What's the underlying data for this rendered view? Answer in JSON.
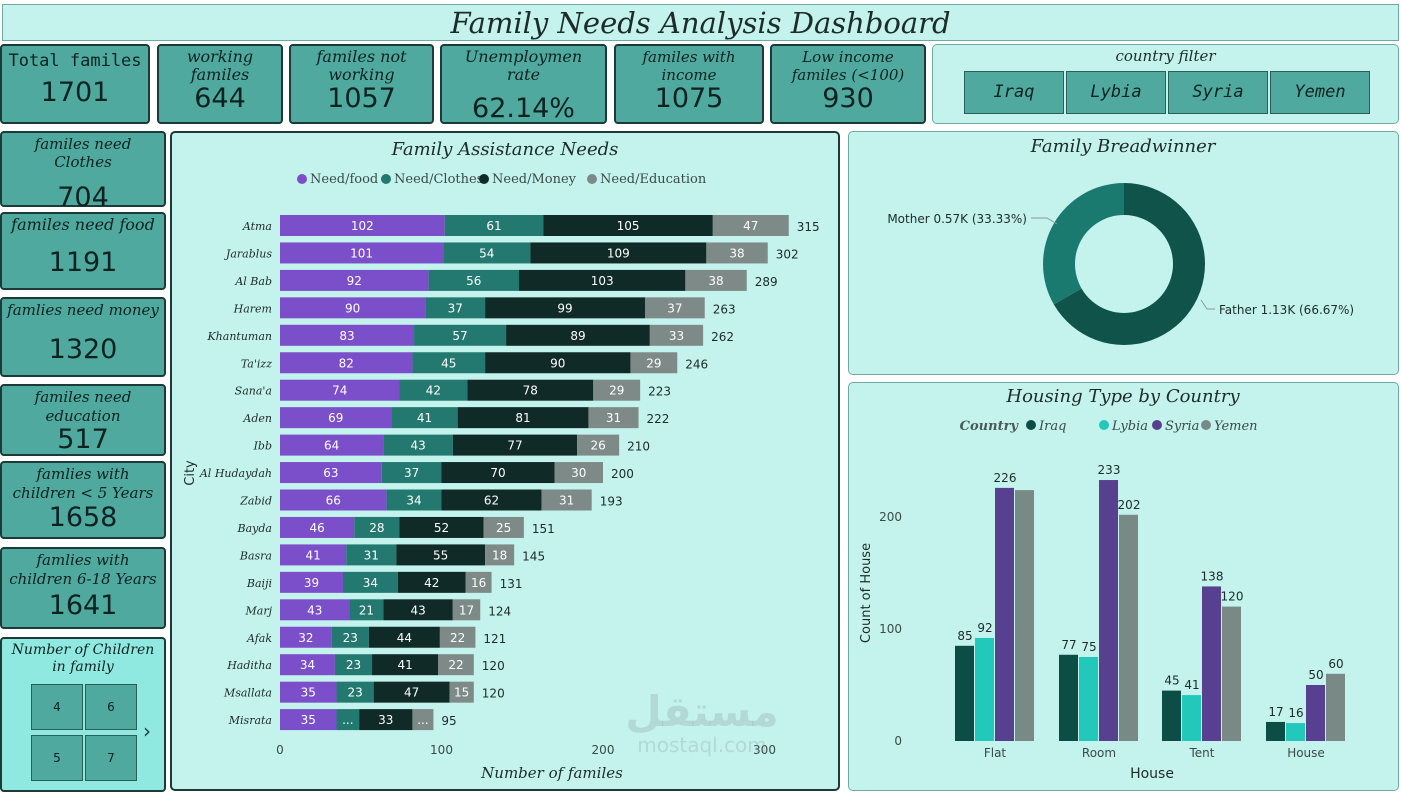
{
  "title": "Family Needs Analysis Dashboard",
  "kpis": [
    {
      "label": "Total familes",
      "value": "1701"
    },
    {
      "label": "working familes",
      "value": "644"
    },
    {
      "label": "familes not working",
      "value": "1057"
    },
    {
      "label": "Unemploymen rate",
      "value": "62.14%"
    },
    {
      "label": "familes with income",
      "value": "1075"
    },
    {
      "label": "Low income familes (<100)",
      "value": "930"
    }
  ],
  "country_filter": {
    "title": "country filter",
    "options": [
      "Iraq",
      "Lybia",
      "Syria",
      "Yemen"
    ]
  },
  "side_kpis": [
    {
      "label": "familes need Clothes",
      "value": "704"
    },
    {
      "label": "familes need food",
      "value": "1191"
    },
    {
      "label": "famlies need money",
      "value": "1320"
    },
    {
      "label": "familes need education",
      "value": "517"
    },
    {
      "label": "famlies with children < 5 Years",
      "value": "1658"
    },
    {
      "label": "famlies with children 6-18 Years",
      "value": "1641"
    }
  ],
  "children_slicer": {
    "title": "Number of Children in family",
    "options": [
      "4",
      "6",
      "5",
      "7"
    ]
  },
  "watermark": {
    "text_ar": "مستقل",
    "text_en": "mostaql.com"
  },
  "colors": {
    "food": "#7b4fc9",
    "clothes": "#23796f",
    "money": "#0f2a27",
    "education": "#7e8a88",
    "iraq": "#0c4e46",
    "lybia": "#22c9bb",
    "syria": "#56408f",
    "yemen": "#798985",
    "mother": "#1b7a70",
    "father": "#10534b"
  },
  "chart_data": [
    {
      "type": "bar",
      "orientation": "horizontal",
      "stacked": true,
      "title": "Family Assistance Needs",
      "xlabel": "Number of familes",
      "ylabel": "City",
      "xlim": [
        0,
        300
      ],
      "xticks": [
        "0",
        "100",
        "200",
        "300"
      ],
      "legend_position": "top",
      "categories": [
        "Atma",
        "Jarablus",
        "Al Bab",
        "Harem",
        "Khantuman",
        "Ta'izz",
        "Sana'a",
        "Aden",
        "Ibb",
        "Al Hudaydah",
        "Zabid",
        "Bayda",
        "Basra",
        "Baiji",
        "Marj",
        "Afak",
        "Haditha",
        "Msallata",
        "Misrata"
      ],
      "series": [
        {
          "name": "Need/food",
          "values": [
            102,
            101,
            92,
            90,
            83,
            82,
            74,
            69,
            64,
            63,
            66,
            46,
            41,
            39,
            43,
            32,
            34,
            35,
            35
          ]
        },
        {
          "name": "Need/Clothes",
          "values": [
            61,
            54,
            56,
            37,
            57,
            45,
            42,
            41,
            43,
            37,
            34,
            28,
            31,
            34,
            21,
            23,
            23,
            23,
            14
          ]
        },
        {
          "name": "Need/Money",
          "values": [
            105,
            109,
            103,
            99,
            89,
            90,
            78,
            81,
            77,
            70,
            62,
            52,
            55,
            42,
            43,
            44,
            41,
            47,
            33
          ]
        },
        {
          "name": "Need/Education",
          "values": [
            47,
            38,
            38,
            37,
            33,
            29,
            29,
            31,
            26,
            30,
            31,
            25,
            18,
            16,
            17,
            22,
            22,
            15,
            13
          ]
        }
      ],
      "segment_labels": [
        [
          "102",
          "61",
          "105",
          "47"
        ],
        [
          "101",
          "54",
          "109",
          "38"
        ],
        [
          "92",
          "56",
          "103",
          "38"
        ],
        [
          "90",
          "37",
          "99",
          "37"
        ],
        [
          "83",
          "57",
          "89",
          "33"
        ],
        [
          "82",
          "45",
          "90",
          "29"
        ],
        [
          "74",
          "42",
          "78",
          "29"
        ],
        [
          "69",
          "41",
          "81",
          "31"
        ],
        [
          "64",
          "43",
          "77",
          "26"
        ],
        [
          "63",
          "37",
          "70",
          "30"
        ],
        [
          "66",
          "34",
          "62",
          "31"
        ],
        [
          "46",
          "28",
          "52",
          "25"
        ],
        [
          "41",
          "31",
          "55",
          "18"
        ],
        [
          "39",
          "34",
          "42",
          "16"
        ],
        [
          "43",
          "21",
          "43",
          "17"
        ],
        [
          "32",
          "23",
          "44",
          "22"
        ],
        [
          "34",
          "23",
          "41",
          "22"
        ],
        [
          "35",
          "23",
          "47",
          "15"
        ],
        [
          "35",
          "...",
          "33",
          "..."
        ]
      ],
      "totals": [
        "315",
        "302",
        "289",
        "263",
        "262",
        "246",
        "223",
        "222",
        "210",
        "200",
        "193",
        "151",
        "145",
        "131",
        "124",
        "121",
        "120",
        "120",
        "95"
      ]
    },
    {
      "type": "pie",
      "donut": true,
      "title": "Family Breadwinner",
      "slices": [
        {
          "name": "Mother",
          "value": 0.57,
          "percent": 33.33,
          "label": "Mother 0.57K (33.33%)"
        },
        {
          "name": "Father",
          "value": 1.13,
          "percent": 66.67,
          "label": "Father 1.13K (66.67%)"
        }
      ]
    },
    {
      "type": "bar",
      "title": "Housing Type by Country",
      "legend_title": "Country",
      "xlabel": "House",
      "ylabel": "Count of House",
      "ylim": [
        0,
        240
      ],
      "yticks": [
        "0",
        "100",
        "200"
      ],
      "legend_position": "top",
      "categories": [
        "Flat",
        "Room",
        "Tent",
        "House"
      ],
      "series": [
        {
          "name": "Iraq",
          "values": [
            85,
            77,
            45,
            17
          ],
          "labels": [
            "85",
            "77",
            "45",
            "17"
          ]
        },
        {
          "name": "Lybia",
          "values": [
            92,
            75,
            41,
            16
          ],
          "labels": [
            "92",
            "75",
            "41",
            "16"
          ]
        },
        {
          "name": "Syria",
          "values": [
            226,
            233,
            138,
            50
          ],
          "labels": [
            "226",
            "233",
            "138",
            "50"
          ]
        },
        {
          "name": "Yemen",
          "values": [
            224,
            202,
            120,
            60
          ],
          "labels": [
            "",
            "202",
            "120",
            "60"
          ]
        }
      ]
    }
  ]
}
